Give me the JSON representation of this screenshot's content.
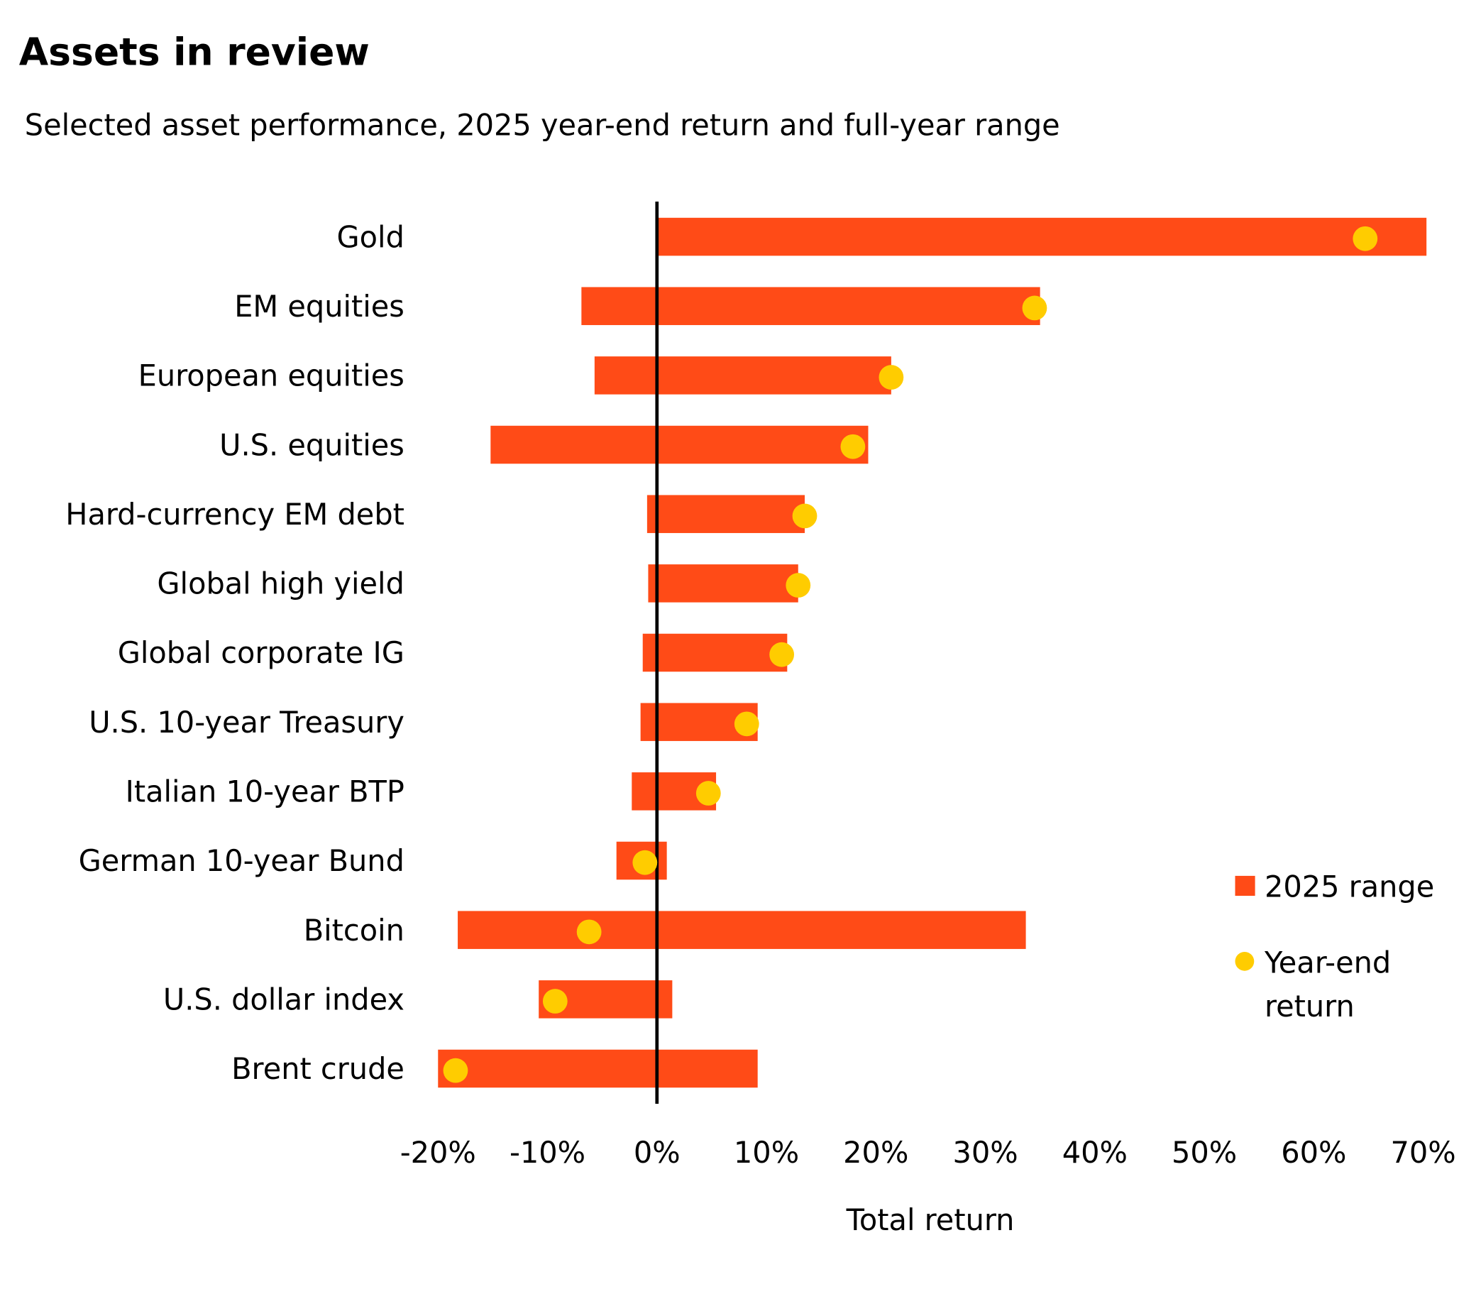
{
  "chart_data": {
    "type": "range-bar-with-dots",
    "title": "Assets in review",
    "subtitle": "Selected asset performance, 2025 year-end return and full-year range",
    "xlabel": "Total return",
    "ylabel": "",
    "xlim": [
      -20,
      70
    ],
    "x_ticks": [
      "-20%",
      "-10%",
      "0%",
      "10%",
      "20%",
      "30%",
      "40%",
      "50%",
      "60%",
      "70%"
    ],
    "grid": false,
    "legend_position": "right",
    "legend": {
      "range_label": "2025 range",
      "dot_label_line1": "Year-end",
      "dot_label_line2": "return"
    },
    "colors": {
      "range": "#FF4B17",
      "dot": "#FFCC00",
      "zero_line": "#000000"
    },
    "categories": [
      "Gold",
      "EM equities",
      "European equities",
      "U.S. equities",
      "Hard-currency EM debt",
      "Global high yield",
      "Global corporate IG",
      "U.S. 10-year Treasury",
      "Italian 10-year BTP",
      "German 10-year Bund",
      "Bitcoin",
      "U.S. dollar index",
      "Brent crude"
    ],
    "series": [
      {
        "name": "2025 range",
        "low": [
          0.0,
          -6.9,
          -5.7,
          -15.2,
          -0.9,
          -0.8,
          -1.3,
          -1.5,
          -2.3,
          -3.7,
          -18.2,
          -10.8,
          -20.0
        ],
        "high": [
          70.3,
          35.0,
          21.4,
          19.3,
          13.5,
          12.9,
          11.9,
          9.2,
          5.4,
          0.9,
          33.7,
          1.4,
          9.2
        ]
      },
      {
        "name": "Year-end return",
        "values": [
          64.7,
          34.5,
          21.4,
          17.9,
          13.5,
          12.9,
          11.4,
          8.2,
          4.7,
          -1.1,
          -6.2,
          -9.3,
          -18.4
        ]
      }
    ]
  }
}
